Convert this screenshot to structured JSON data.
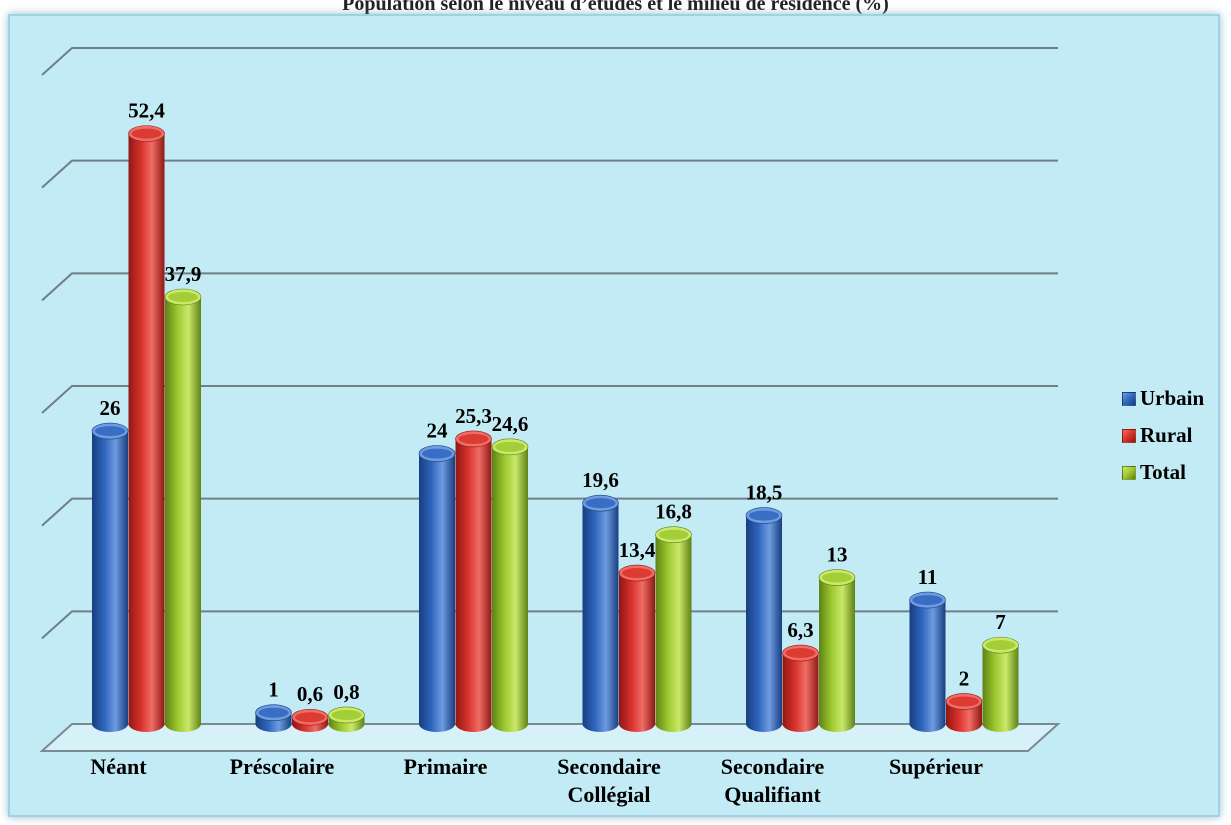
{
  "chart_data": {
    "type": "bar",
    "title": "Population selon le niveau d’études et le milieu de résidence (%)",
    "categories": [
      [
        "Néant"
      ],
      [
        "Préscolaire"
      ],
      [
        "Primaire"
      ],
      [
        "Secondaire",
        "Collégial"
      ],
      [
        "Secondaire",
        "Qualifiant"
      ],
      [
        "Supérieur"
      ]
    ],
    "series": [
      {
        "name": "Urbain",
        "values": [
          26,
          1,
          24,
          19.6,
          18.5,
          11
        ],
        "labels": [
          "26",
          "1",
          "24",
          "19,6",
          "18,5",
          "11"
        ],
        "color": "#2f66bd",
        "color_dark": "#173e80",
        "color_light": "#6f9be0"
      },
      {
        "name": "Rural",
        "values": [
          52.4,
          0.6,
          25.3,
          13.4,
          6.3,
          2
        ],
        "labels": [
          "52,4",
          "0,6",
          "25,3",
          "13,4",
          "6,3",
          "2"
        ],
        "color": "#d8322c",
        "color_dark": "#8f1714",
        "color_light": "#f06d66"
      },
      {
        "name": "Total",
        "values": [
          37.9,
          0.8,
          24.6,
          16.8,
          13,
          7
        ],
        "labels": [
          "37,9",
          "0,8",
          "24,6",
          "16,8",
          "13",
          "7"
        ],
        "color": "#9cc92f",
        "color_dark": "#5e8214",
        "color_light": "#cbe86a"
      }
    ],
    "ylim": [
      0,
      60
    ],
    "gridlines": true,
    "y_tick_labels": false,
    "legend_position": "right",
    "background_color": "#c3ebf5",
    "data_labels": true
  }
}
